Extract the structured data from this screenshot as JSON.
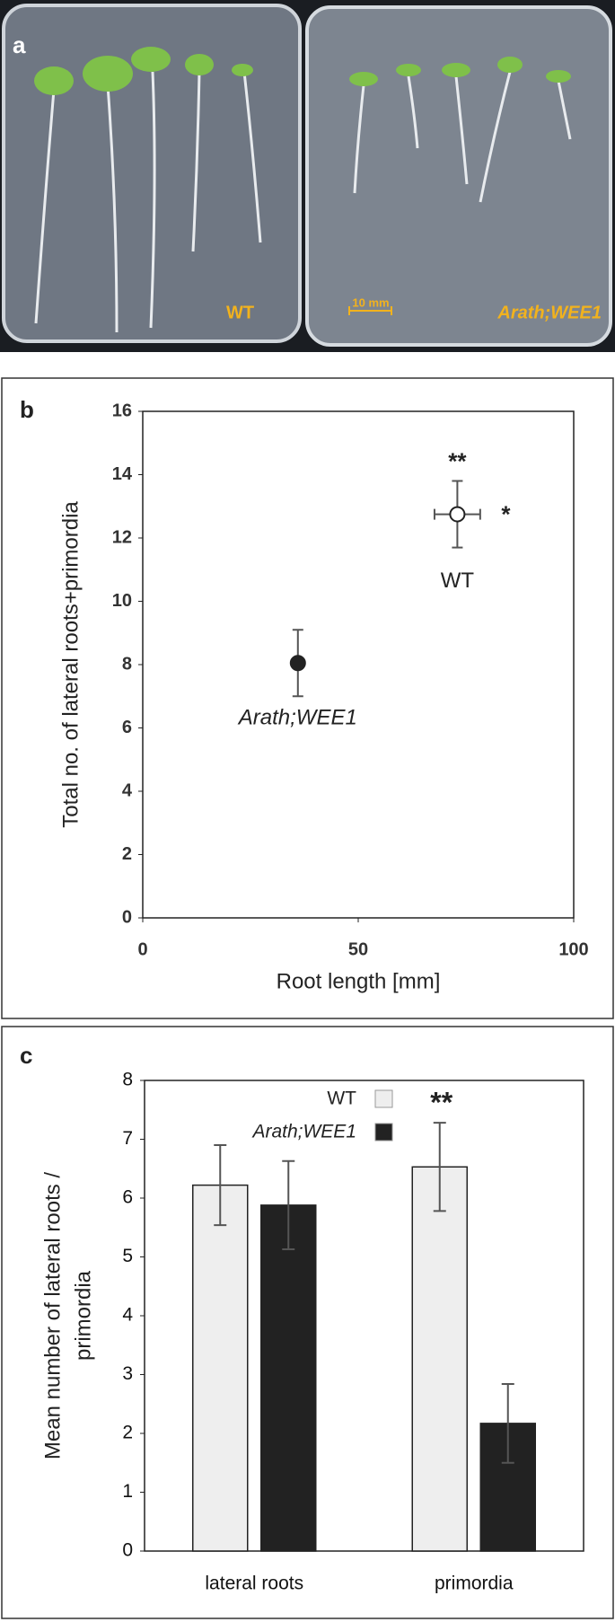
{
  "panel_a": {
    "label": "a",
    "wt_label": "WT",
    "scale_label": "10 mm",
    "mutant_label": "Arath;WEE1"
  },
  "chart_data": [
    {
      "type": "scatter",
      "panel_label": "b",
      "xlabel": "Root length [mm]",
      "ylabel": "Total no. of lateral roots+primordia",
      "xlim": [
        0,
        100
      ],
      "xticks": [
        0,
        50,
        100
      ],
      "ylim": [
        0,
        16
      ],
      "yticks": [
        0,
        2,
        4,
        6,
        8,
        10,
        12,
        14,
        16
      ],
      "series": [
        {
          "name": "WT",
          "color": "#ffffff",
          "x": [
            73
          ],
          "values": [
            12.75
          ],
          "xerr": [
            5.3
          ],
          "yerr": [
            1.05
          ]
        },
        {
          "name": "Arath;WEE1",
          "color": "#222222",
          "x": [
            36
          ],
          "values": [
            8.05
          ],
          "xerr": [
            0
          ],
          "yerr": [
            1.05
          ]
        }
      ],
      "annotations": [
        "**",
        "*"
      ]
    },
    {
      "type": "bar",
      "panel_label": "c",
      "ylabel": [
        "Mean number of lateral roots /",
        "primordia"
      ],
      "categories": [
        "lateral roots",
        "primordia"
      ],
      "ylim": [
        0,
        8
      ],
      "yticks": [
        0,
        1,
        2,
        3,
        4,
        5,
        6,
        7,
        8
      ],
      "series": [
        {
          "name": "WT",
          "color": "#eeeeee",
          "values": [
            6.22,
            6.53
          ],
          "errors": [
            0.68,
            0.75
          ]
        },
        {
          "name": "Arath;WEE1",
          "color": "#222222",
          "values": [
            5.88,
            2.17
          ],
          "errors": [
            0.75,
            0.67
          ]
        }
      ],
      "annotations": [
        "**"
      ],
      "legend": "top-right"
    }
  ]
}
